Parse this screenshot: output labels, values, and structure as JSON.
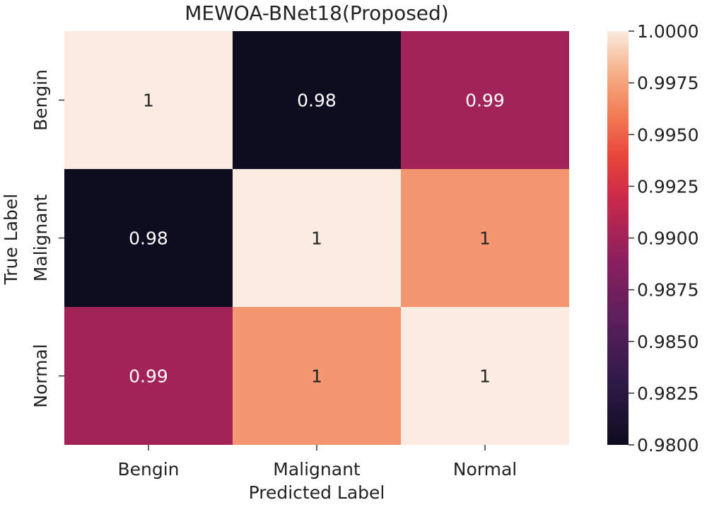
{
  "chart_data": {
    "type": "heatmap",
    "title": "MEWOA-BNet18(Proposed)",
    "xlabel": "Predicted Label",
    "ylabel": "True Label",
    "x_categories": [
      "Bengin",
      "Malignant",
      "Normal"
    ],
    "y_categories": [
      "Bengin",
      "Malignant",
      "Normal"
    ],
    "values": [
      [
        1.0,
        0.98,
        0.99
      ],
      [
        0.98,
        1.0,
        0.997
      ],
      [
        0.99,
        0.997,
        1.0
      ]
    ],
    "annotations": [
      [
        "1",
        "0.98",
        "0.99"
      ],
      [
        "0.98",
        "1",
        "1"
      ],
      [
        "0.99",
        "1",
        "1"
      ]
    ],
    "colorbar": {
      "min": 0.98,
      "max": 1.0,
      "ticks": [
        "0.9800",
        "0.9825",
        "0.9850",
        "0.9875",
        "0.9900",
        "0.9925",
        "0.9950",
        "0.9975",
        "1.0000"
      ],
      "colormap": "rocket"
    }
  }
}
